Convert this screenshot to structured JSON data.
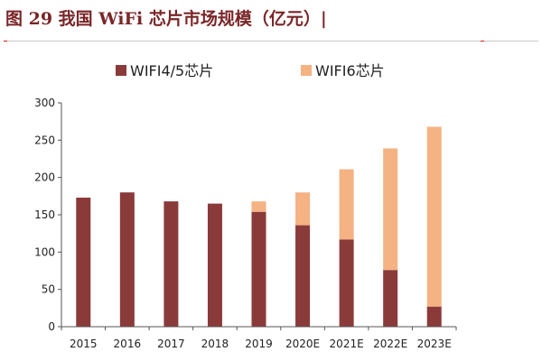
{
  "title": "图 29 我国 WiFi 芯片市场规模（亿元）|",
  "colors": {
    "series1": "#8b3a3a",
    "series2": "#f5b283",
    "axis": "#555555"
  },
  "chart_data": {
    "type": "bar",
    "stacked": true,
    "categories": [
      "2015",
      "2016",
      "2017",
      "2018",
      "2019",
      "2020E",
      "2021E",
      "2022E",
      "2023E"
    ],
    "series": [
      {
        "name": "WIFI4/5芯片",
        "values": [
          173,
          180,
          168,
          165,
          154,
          136,
          117,
          76,
          27
        ]
      },
      {
        "name": "WIFI6芯片",
        "values": [
          0,
          0,
          0,
          0,
          14,
          44,
          94,
          163,
          241
        ]
      }
    ],
    "ylim": [
      0,
      300
    ],
    "yticks": [
      0,
      50,
      100,
      150,
      200,
      250,
      300
    ],
    "legend_position": "top",
    "grid": false
  }
}
